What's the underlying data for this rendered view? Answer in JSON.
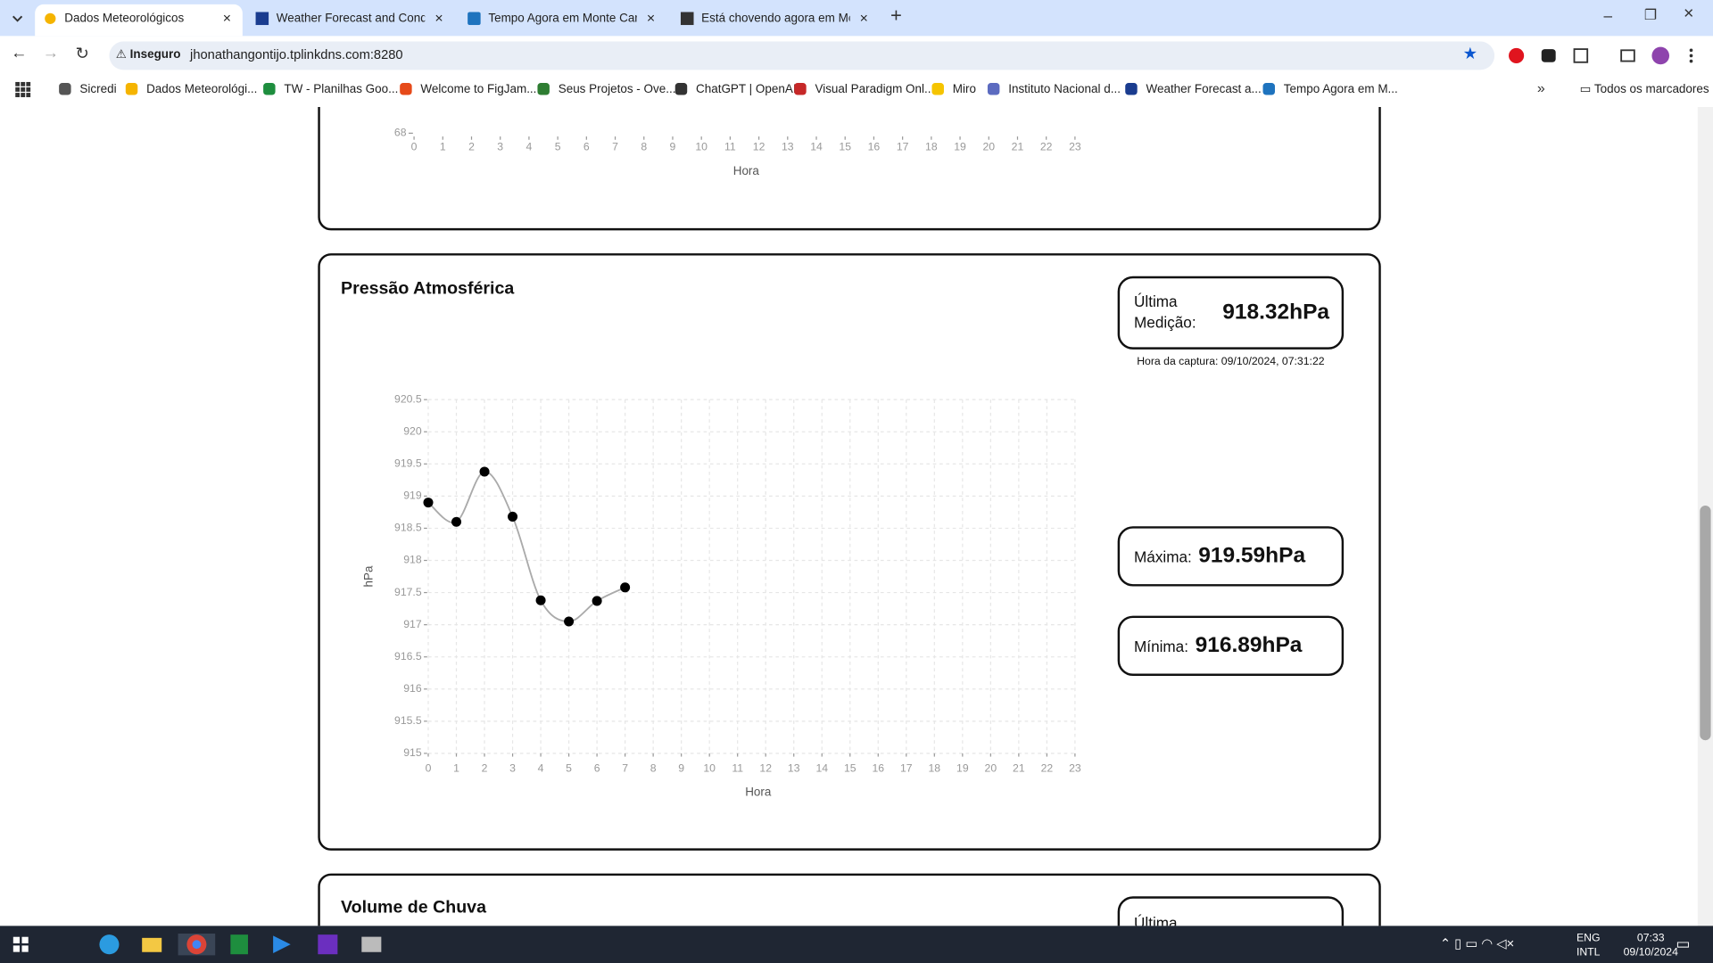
{
  "browser": {
    "tabs": [
      "Dados Meteorológicos",
      "Weather Forecast and Conditio",
      "Tempo Agora em Monte Carme",
      "Está chovendo agora em Monte"
    ],
    "security": "Inseguro",
    "url": "jhonathangontijo.tplinkdns.com:8280",
    "bookmarks": [
      "Sicredi",
      "Dados Meteorológi...",
      "TW - Planilhas Goo...",
      "Welcome to FigJam...",
      "Seus Projetos - Ove...",
      "ChatGPT | OpenAI",
      "Visual Paradigm Onl...",
      "Miro",
      "Instituto Nacional d...",
      "Weather Forecast a...",
      "Tempo Agora em M..."
    ],
    "all_bookmarks": "Todos os marcadores"
  },
  "previous_chart": {
    "yticks": [
      68
    ],
    "xticks": [
      0,
      1,
      2,
      3,
      4,
      5,
      6,
      7,
      8,
      9,
      10,
      11,
      12,
      13,
      14,
      15,
      16,
      17,
      18,
      19,
      20,
      21,
      22,
      23
    ],
    "xlim": [
      0,
      23
    ],
    "x_label": "Hora"
  },
  "pressure_panel": {
    "title": "Pressão Atmosférica",
    "last_measurement": {
      "label": "Última Medição:",
      "value": "918.32hPa"
    },
    "capture_time": "Hora da captura: 09/10/2024, 07:31:22",
    "maximum": {
      "label": "Máxima:",
      "value": "919.59hPa"
    },
    "minimum": {
      "label": "Mínima:",
      "value": "916.89hPa"
    }
  },
  "chart_data": {
    "type": "line",
    "y_label": "hPa",
    "x_label": "Hora",
    "x": [
      0,
      1,
      2,
      3,
      4,
      5,
      6,
      7
    ],
    "values": [
      918.9,
      918.6,
      919.38,
      918.68,
      917.38,
      917.05,
      917.37,
      917.58
    ],
    "color": "#aaaaaa",
    "marker_color": "#000000",
    "xlim": [
      0,
      23
    ],
    "xticks": [
      0,
      1,
      2,
      3,
      4,
      5,
      6,
      7,
      8,
      9,
      10,
      11,
      12,
      13,
      14,
      15,
      16,
      17,
      18,
      19,
      20,
      21,
      22,
      23
    ],
    "ylim": [
      915,
      920.5
    ],
    "yticks": [
      915,
      915.5,
      916,
      916.5,
      917,
      917.5,
      918,
      918.5,
      919,
      919.5,
      920,
      920.5
    ],
    "grid": true
  },
  "rain_panel": {
    "title": "Volume de Chuva",
    "last_label": "Última"
  },
  "taskbar": {
    "language": "ENG",
    "layout": "INTL",
    "time": "07:33",
    "date": "09/10/2024"
  }
}
